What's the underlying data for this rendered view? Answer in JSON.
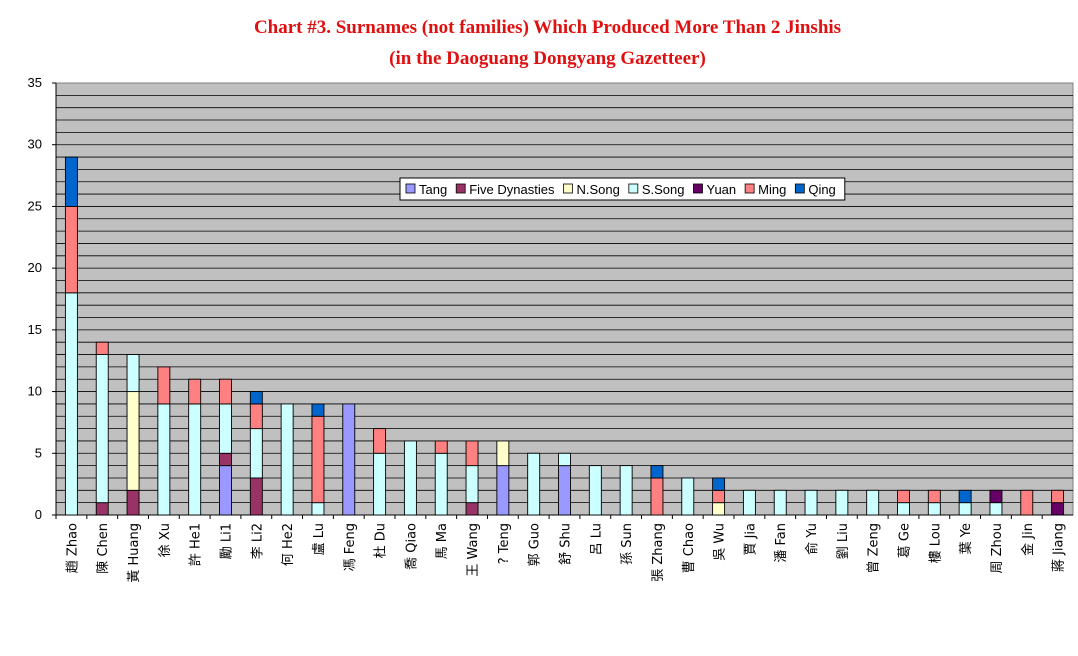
{
  "chart_data": {
    "type": "bar",
    "stacked": true,
    "title": "Chart #3. Surnames (not families) Which Produced More Than 2 Jinshis",
    "subtitle": "(in the Daoguang Dongyang Gazetteer)",
    "xlabel": "",
    "ylabel": "",
    "ylim": [
      0,
      35
    ],
    "yticks": [
      0,
      5,
      10,
      15,
      20,
      25,
      30,
      35
    ],
    "grid": true,
    "legend_position": "top-right",
    "categories": [
      "趙 Zhao",
      "陳 Chen",
      "黃 Huang",
      "徐 Xu",
      "許 He1",
      "勵 Li1",
      "李 Li2",
      "何 He2",
      "盧 Lu",
      "馮 Feng",
      "杜 Du",
      "喬 Qiao",
      "馬 Ma",
      "王 Wang",
      "? Teng",
      "郭 Guo",
      "舒 Shu",
      "呂 Lu",
      "孫 Sun",
      "張 Zhang",
      "曹 Chao",
      "吳 Wu",
      "賈 Jia",
      "潘 Fan",
      "俞 Yu",
      "劉 Liu",
      "曾 Zeng",
      "葛 Ge",
      "樓 Lou",
      "葉 Ye",
      "周 Zhou",
      "金 Jin",
      "蔣 Jiang"
    ],
    "series": [
      {
        "name": "Tang",
        "color": "#9999ff",
        "values": [
          0,
          0,
          0,
          0,
          0,
          4,
          0,
          0,
          0,
          9,
          0,
          0,
          0,
          0,
          4,
          0,
          4,
          0,
          0,
          0,
          0,
          0,
          0,
          0,
          0,
          0,
          0,
          0,
          0,
          0,
          0,
          0,
          0
        ]
      },
      {
        "name": "Five Dynasties",
        "color": "#993366",
        "values": [
          0,
          1,
          2,
          0,
          0,
          1,
          3,
          0,
          0,
          0,
          0,
          0,
          0,
          1,
          0,
          0,
          0,
          0,
          0,
          0,
          0,
          0,
          0,
          0,
          0,
          0,
          0,
          0,
          0,
          0,
          0,
          0,
          0
        ]
      },
      {
        "name": "N.Song",
        "color": "#ffffcc",
        "values": [
          0,
          0,
          8,
          0,
          0,
          0,
          0,
          0,
          0,
          0,
          0,
          0,
          0,
          0,
          2,
          0,
          0,
          0,
          0,
          0,
          0,
          1,
          0,
          0,
          0,
          0,
          0,
          0,
          0,
          0,
          0,
          0,
          0
        ]
      },
      {
        "name": "S.Song",
        "color": "#ccffff",
        "values": [
          18,
          12,
          3,
          9,
          9,
          4,
          4,
          9,
          1,
          0,
          5,
          6,
          5,
          3,
          0,
          5,
          1,
          4,
          4,
          0,
          3,
          0,
          2,
          2,
          2,
          2,
          2,
          1,
          1,
          1,
          1,
          0,
          0
        ]
      },
      {
        "name": "Yuan",
        "color": "#660066",
        "values": [
          0,
          0,
          0,
          0,
          0,
          0,
          0,
          0,
          0,
          0,
          0,
          0,
          0,
          0,
          0,
          0,
          0,
          0,
          0,
          0,
          0,
          0,
          0,
          0,
          0,
          0,
          0,
          0,
          0,
          0,
          1,
          0,
          1
        ]
      },
      {
        "name": "Ming",
        "color": "#ff8080",
        "values": [
          7,
          1,
          0,
          3,
          2,
          2,
          2,
          0,
          7,
          0,
          2,
          0,
          1,
          2,
          0,
          0,
          0,
          0,
          0,
          3,
          0,
          1,
          0,
          0,
          0,
          0,
          0,
          1,
          1,
          0,
          0,
          2,
          1
        ]
      },
      {
        "name": "Qing",
        "color": "#0066cc",
        "values": [
          4,
          0,
          0,
          0,
          0,
          0,
          1,
          0,
          1,
          0,
          0,
          0,
          0,
          0,
          0,
          0,
          0,
          0,
          0,
          1,
          0,
          1,
          0,
          0,
          0,
          0,
          0,
          0,
          0,
          1,
          0,
          0,
          0
        ]
      }
    ]
  }
}
